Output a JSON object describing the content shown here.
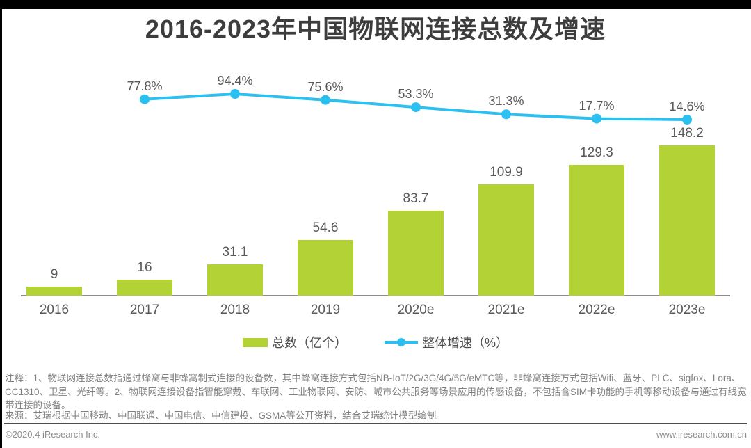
{
  "page": {
    "title": "2016-2023年中国物联网连接总数及增速"
  },
  "chart_data": {
    "type": "bar",
    "title": "2016-2023年中国物联网连接总数及增速",
    "categories": [
      "2016",
      "2017",
      "2018",
      "2019",
      "2020e",
      "2021e",
      "2022e",
      "2023e"
    ],
    "series": [
      {
        "name": "总数（亿个）",
        "type": "bar",
        "color": "#b2d235",
        "values": [
          9,
          16,
          31.1,
          54.6,
          83.7,
          109.9,
          129.3,
          148.2
        ],
        "labels": [
          "9",
          "16",
          "31.1",
          "54.6",
          "83.7",
          "109.9",
          "129.3",
          "148.2"
        ]
      },
      {
        "name": "整体增速（%）",
        "type": "line",
        "color": "#2bc0f0",
        "categories": [
          "2017",
          "2018",
          "2019",
          "2020e",
          "2021e",
          "2022e",
          "2023e"
        ],
        "values": [
          77.8,
          94.4,
          75.6,
          53.3,
          31.3,
          17.7,
          14.6
        ],
        "labels": [
          "77.8%",
          "94.4%",
          "75.6%",
          "53.3%",
          "31.3%",
          "17.7%",
          "14.6%"
        ]
      }
    ],
    "ylim": [
      0,
      160
    ],
    "y2lim": [
      0,
      110
    ],
    "grid": false,
    "legend_position": "bottom-center"
  },
  "legend": {
    "bar_label": "总数（亿个）",
    "line_label": "整体增速（%）"
  },
  "notes": {
    "text": "注释：1、物联网连接总数指通过蜂窝与非蜂窝制式连接的设备数，其中蜂窝连接方式包括NB-IoT/2G/3G/4G/5G/eMTC等，非蜂窝连接方式包括Wifi、蓝牙、PLC、sigfox、Lora、CC1310、卫星、光纤等。2、物联网连接设备指智能穿戴、车联网、工业物联网、安防、城市公共服务等场景应用的传感设备，不包括含SIM卡功能的手机等移动设备与通过有线宽带连接的设备。",
    "source": "来源：艾瑞根据中国移动、中国联通、中国电信、中信建投、GSMA等公开资料，结合艾瑞统计模型绘制。"
  },
  "footer": {
    "copyright": "©2020.4 iResearch Inc.",
    "website": "www.iresearch.com.cn"
  },
  "colors": {
    "bar": "#b2d235",
    "line": "#2bc0f0",
    "title": "#3d3d3d",
    "label": "#595959",
    "axis": "#8c8c8c",
    "note": "#808080",
    "footer": "#8c8c8c",
    "divider": "#4d4d4d"
  }
}
